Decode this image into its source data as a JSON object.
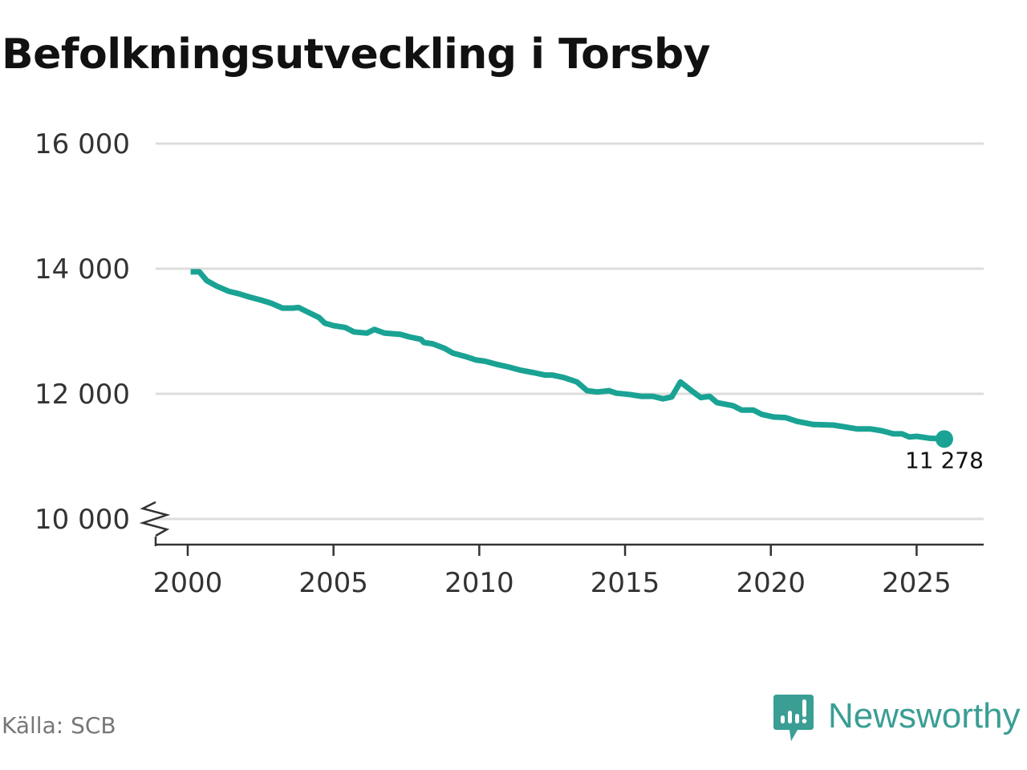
{
  "title": "Befolkningsutveckling i Torsby",
  "source": "Källa: SCB",
  "logo_text": "Newsworthy",
  "colors": {
    "line": "#1aa394",
    "grid": "#dddddd",
    "axis": "#333333",
    "logo": "#3a9e94"
  },
  "chart_data": {
    "type": "line",
    "title": "Befolkningsutveckling i Torsby",
    "xlabel": "",
    "ylabel": "",
    "xlim": [
      1998.9,
      2027.3
    ],
    "ylim": [
      10000,
      16000
    ],
    "y_axis_break": true,
    "grid": true,
    "xticks": [
      2000,
      2005,
      2010,
      2015,
      2020,
      2025
    ],
    "xtick_labels": [
      "2000",
      "2005",
      "2010",
      "2015",
      "2020",
      "2025"
    ],
    "yticks": [
      10000,
      12000,
      14000,
      16000
    ],
    "ytick_labels": [
      "10 000",
      "12 000",
      "14 000",
      "16 000"
    ],
    "end_label": "11 278",
    "series": [
      {
        "name": "Befolkning",
        "x": [
          2000.1,
          2000.4,
          2000.65,
          2001.0,
          2001.4,
          2001.75,
          2002.1,
          2002.5,
          2002.85,
          2003.25,
          2003.6,
          2003.8,
          2004.15,
          2004.5,
          2004.7,
          2005.0,
          2005.4,
          2005.7,
          2006.15,
          2006.4,
          2006.75,
          2007.3,
          2007.6,
          2008.0,
          2008.1,
          2008.4,
          2008.8,
          2009.1,
          2009.5,
          2009.9,
          2010.2,
          2010.6,
          2011.0,
          2011.4,
          2011.85,
          2012.25,
          2012.5,
          2012.9,
          2013.35,
          2013.7,
          2014.05,
          2014.45,
          2014.7,
          2015.15,
          2015.55,
          2015.95,
          2016.3,
          2016.6,
          2016.9,
          2017.25,
          2017.6,
          2017.9,
          2018.15,
          2018.7,
          2019.0,
          2019.4,
          2019.7,
          2020.1,
          2020.5,
          2020.9,
          2021.45,
          2022.15,
          2022.55,
          2022.95,
          2023.4,
          2023.8,
          2024.2,
          2024.5,
          2024.75,
          2025.0,
          2025.45,
          2025.95
        ],
        "y": [
          13950,
          13950,
          13810,
          13720,
          13640,
          13600,
          13550,
          13500,
          13450,
          13370,
          13370,
          13380,
          13300,
          13220,
          13130,
          13090,
          13060,
          12990,
          12970,
          13030,
          12970,
          12950,
          12910,
          12870,
          12820,
          12800,
          12730,
          12650,
          12600,
          12540,
          12520,
          12470,
          12430,
          12380,
          12340,
          12300,
          12300,
          12260,
          12190,
          12050,
          12030,
          12050,
          12010,
          11990,
          11960,
          11960,
          11920,
          11950,
          12190,
          12060,
          11940,
          11960,
          11860,
          11810,
          11740,
          11740,
          11670,
          11630,
          11620,
          11560,
          11510,
          11500,
          11470,
          11440,
          11440,
          11410,
          11360,
          11360,
          11310,
          11320,
          11290,
          11278
        ]
      }
    ]
  }
}
